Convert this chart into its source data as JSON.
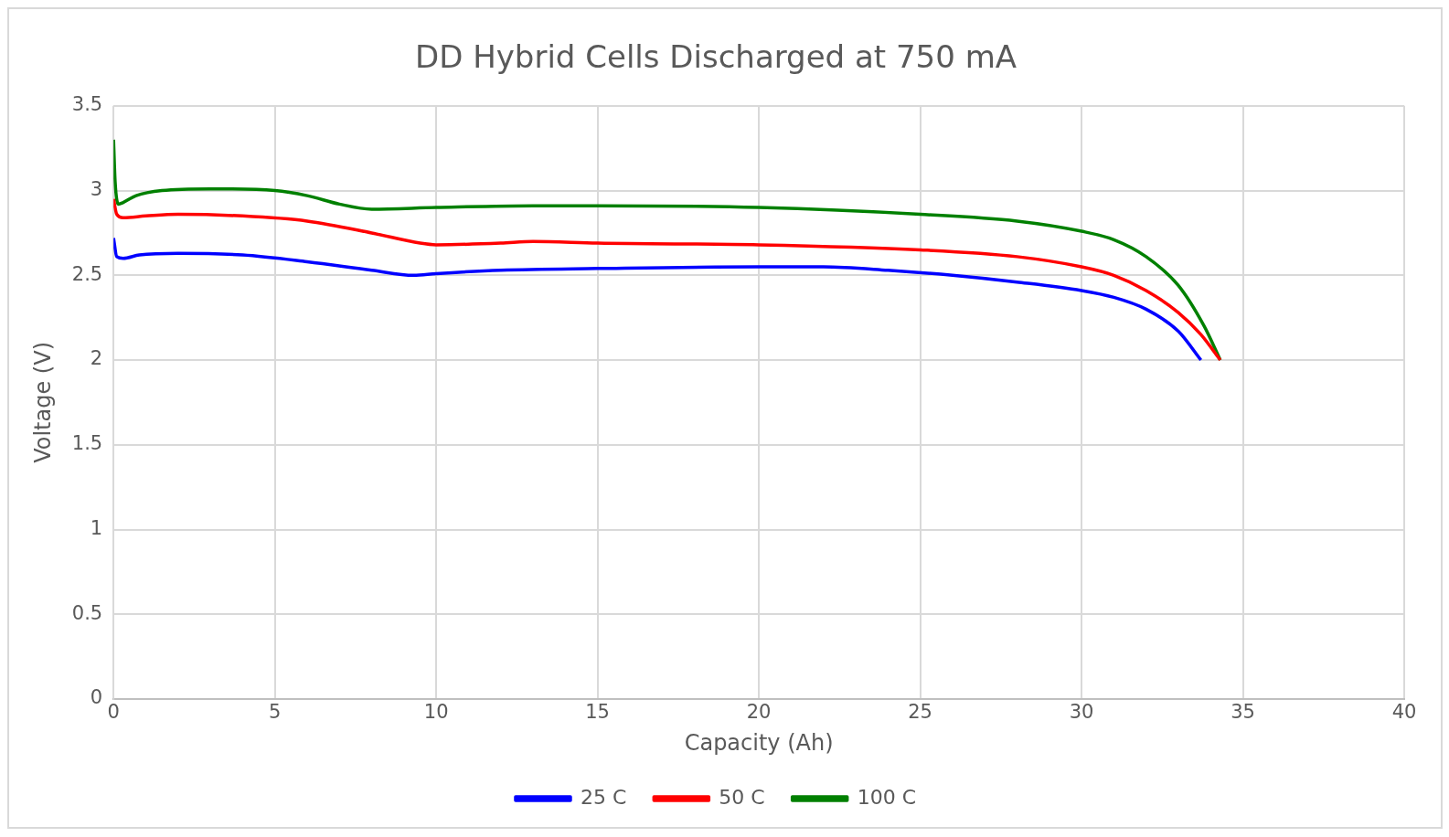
{
  "chart_data": {
    "type": "line",
    "title": "DD Hybrid Cells Discharged at 750 mA",
    "xlabel": "Capacity (Ah)",
    "ylabel": "Voltage (V)",
    "xlim": [
      0,
      40
    ],
    "xticks": [
      0,
      5,
      10,
      15,
      20,
      25,
      30,
      35,
      40
    ],
    "ylim": [
      0,
      3.5
    ],
    "yticks": [
      0,
      0.5,
      1,
      1.5,
      2,
      2.5,
      3,
      3.5
    ],
    "grid": true,
    "legend": "bottom",
    "marker": "none",
    "line_style": "solid",
    "series": [
      {
        "name": "25 C",
        "color": "#0000ff",
        "x": [
          0,
          0.1,
          0.3,
          0.8,
          2,
          4,
          6,
          8,
          9.3,
          10,
          12,
          15,
          20,
          22,
          24,
          26,
          28,
          30,
          31,
          32,
          33,
          33.7
        ],
        "values": [
          2.72,
          2.61,
          2.6,
          2.62,
          2.63,
          2.62,
          2.58,
          2.53,
          2.5,
          2.51,
          2.53,
          2.54,
          2.55,
          2.55,
          2.53,
          2.5,
          2.46,
          2.41,
          2.37,
          2.3,
          2.17,
          2.0
        ]
      },
      {
        "name": "50 C",
        "color": "#ff0000",
        "x": [
          0,
          0.1,
          0.3,
          1,
          2,
          4,
          6,
          8,
          9.5,
          10,
          12,
          13,
          15,
          20,
          25,
          28,
          30,
          31,
          32,
          33,
          33.7,
          34.3
        ],
        "values": [
          2.95,
          2.86,
          2.84,
          2.85,
          2.86,
          2.85,
          2.82,
          2.75,
          2.69,
          2.68,
          2.69,
          2.7,
          2.69,
          2.68,
          2.65,
          2.61,
          2.55,
          2.5,
          2.41,
          2.28,
          2.15,
          2.0
        ]
      },
      {
        "name": "100 C",
        "color": "#008000",
        "x": [
          0,
          0.05,
          0.15,
          0.3,
          0.7,
          1.5,
          3,
          5,
          6,
          7,
          8,
          10,
          13,
          15,
          20,
          25,
          28,
          30,
          31,
          32,
          33,
          33.8,
          34.3
        ],
        "values": [
          3.3,
          3.05,
          2.92,
          2.93,
          2.97,
          3.0,
          3.01,
          3.0,
          2.97,
          2.92,
          2.89,
          2.9,
          2.91,
          2.91,
          2.9,
          2.86,
          2.82,
          2.76,
          2.71,
          2.61,
          2.44,
          2.2,
          2.0
        ]
      }
    ]
  }
}
